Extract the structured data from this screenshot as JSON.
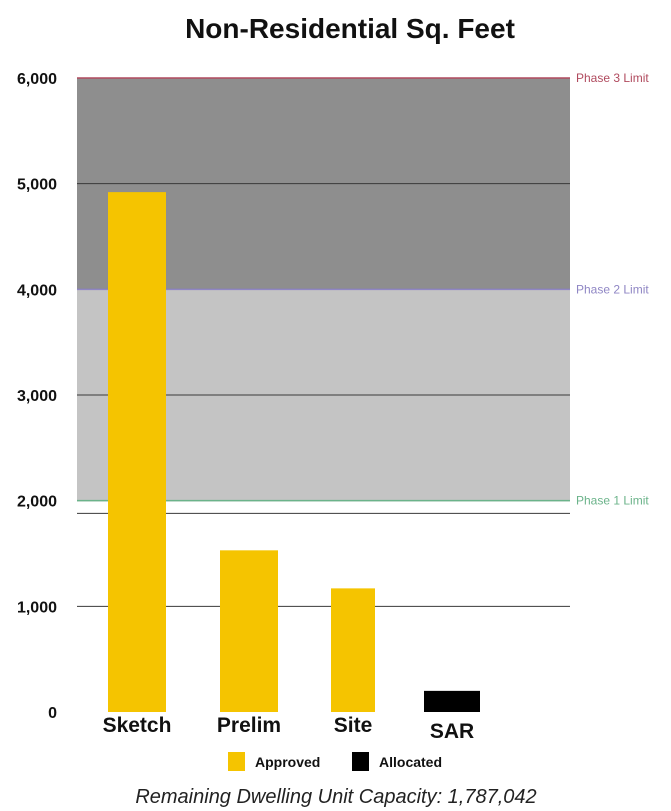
{
  "chart_data": {
    "type": "bar",
    "title": "Non-Residential Sq. Feet",
    "categories": [
      "Sketch",
      "Prelim",
      "Site",
      "SAR"
    ],
    "values": [
      4920,
      1530,
      1170,
      200
    ],
    "bar_series": [
      "Approved",
      "Approved",
      "Approved",
      "Allocated"
    ],
    "ylim": [
      0,
      6000
    ],
    "yticks": [
      0,
      1000,
      2000,
      3000,
      4000,
      5000,
      6000
    ],
    "ytick_labels": [
      "0",
      "1,000",
      "2,000",
      "3,000",
      "4,000",
      "5,000",
      "6,000"
    ],
    "grid": true,
    "extra_reference_line": 1880,
    "bands": [
      {
        "from": 2000,
        "to": 4000,
        "color": "#c4c4c4"
      },
      {
        "from": 4000,
        "to": 6000,
        "color": "#8e8e8e"
      }
    ],
    "limits": [
      {
        "label": "Phase 1 Limit",
        "value": 2000,
        "color": "#6bb38a"
      },
      {
        "label": "Phase 2 Limit",
        "value": 4000,
        "color": "#8f86c4"
      },
      {
        "label": "Phase 3 Limit",
        "value": 6000,
        "color": "#b04a5e"
      }
    ],
    "legend": {
      "position": "bottom",
      "items": [
        {
          "label": "Approved",
          "color": "#f5c400"
        },
        {
          "label": "Allocated",
          "color": "#000000"
        }
      ]
    },
    "footnote": "Remaining Dwelling Unit Capacity: 1,787,042"
  }
}
